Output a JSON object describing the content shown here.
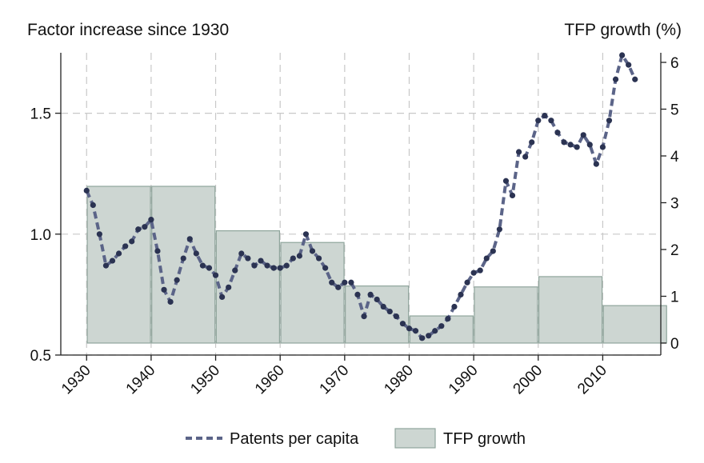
{
  "chart_data": {
    "type": "bar+line",
    "title": "",
    "left_axis_title": "Factor increase since 1930",
    "right_axis_title": "TFP growth (%)",
    "xlabel": "",
    "x_range": [
      1926,
      2019
    ],
    "x_ticks": [
      1930,
      1940,
      1950,
      1960,
      1970,
      1980,
      1990,
      2000,
      2010
    ],
    "left_ylim": [
      0.5,
      1.75
    ],
    "left_y_ticks": [
      0.5,
      1.0,
      1.5
    ],
    "left_y_tick_labels": [
      "0.5",
      "1.0",
      "1.5"
    ],
    "right_ylim": [
      0,
      6
    ],
    "right_y_ticks": [
      0,
      1,
      2,
      3,
      4,
      5,
      6
    ],
    "grid": true,
    "legend_position": "bottom",
    "legend": [
      "Patents per capita",
      "TFP growth"
    ],
    "colors": {
      "line": "#5b6488",
      "marker": "#2b3352",
      "bar_fill": "#cdd6d2",
      "bar_edge": "#8fa59c",
      "grid": "#c8c8c8",
      "axis": "#222222"
    },
    "series": [
      {
        "name": "TFP growth",
        "type": "bar",
        "axis": "right",
        "x": [
          1935,
          1945,
          1955,
          1965,
          1975,
          1985,
          1995,
          2005,
          2015
        ],
        "values": [
          3.35,
          3.35,
          2.4,
          2.15,
          1.22,
          0.58,
          1.2,
          1.42,
          0.8
        ]
      },
      {
        "name": "Patents per capita",
        "type": "line",
        "axis": "left",
        "x": [
          1930,
          1931,
          1932,
          1933,
          1934,
          1935,
          1936,
          1937,
          1938,
          1939,
          1940,
          1941,
          1942,
          1943,
          1944,
          1945,
          1946,
          1947,
          1948,
          1949,
          1950,
          1951,
          1952,
          1953,
          1954,
          1955,
          1956,
          1957,
          1958,
          1959,
          1960,
          1961,
          1962,
          1963,
          1964,
          1965,
          1966,
          1967,
          1968,
          1969,
          1970,
          1971,
          1972,
          1973,
          1974,
          1975,
          1976,
          1977,
          1978,
          1979,
          1980,
          1981,
          1982,
          1983,
          1984,
          1985,
          1986,
          1987,
          1988,
          1989,
          1990,
          1991,
          1992,
          1993,
          1994,
          1995,
          1996,
          1997,
          1998,
          1999,
          2000,
          2001,
          2002,
          2003,
          2004,
          2005,
          2006,
          2007,
          2008,
          2009,
          2010,
          2011,
          2012,
          2013,
          2014,
          2015
        ],
        "values": [
          1.18,
          1.12,
          1.0,
          0.87,
          0.89,
          0.92,
          0.95,
          0.97,
          1.02,
          1.03,
          1.06,
          0.93,
          0.77,
          0.72,
          0.81,
          0.9,
          0.98,
          0.92,
          0.87,
          0.86,
          0.83,
          0.74,
          0.78,
          0.85,
          0.92,
          0.9,
          0.87,
          0.89,
          0.87,
          0.86,
          0.86,
          0.87,
          0.9,
          0.91,
          1.0,
          0.93,
          0.9,
          0.86,
          0.8,
          0.78,
          0.8,
          0.8,
          0.75,
          0.66,
          0.75,
          0.73,
          0.7,
          0.68,
          0.66,
          0.63,
          0.61,
          0.6,
          0.57,
          0.58,
          0.6,
          0.62,
          0.65,
          0.7,
          0.75,
          0.8,
          0.84,
          0.85,
          0.9,
          0.93,
          1.02,
          1.22,
          1.16,
          1.34,
          1.32,
          1.38,
          1.47,
          1.49,
          1.47,
          1.42,
          1.38,
          1.37,
          1.36,
          1.41,
          1.37,
          1.29,
          1.36,
          1.47,
          1.64,
          1.74,
          1.7,
          1.64
        ]
      }
    ]
  }
}
